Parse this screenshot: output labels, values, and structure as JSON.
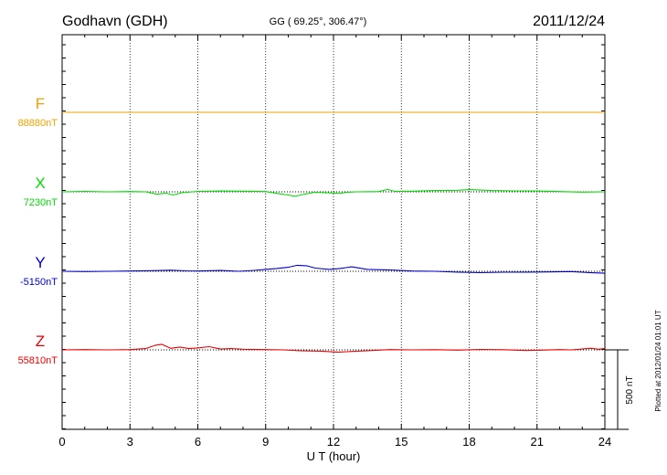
{
  "header": {
    "station": "Godhavn (GDH)",
    "coords": "GG ( 69.25°, 306.47°)",
    "date": "2011/12/24"
  },
  "plotted_note": "Plotted at 2012/01/24 01:01 UT",
  "scale_label": "500 nT",
  "colors": {
    "F": "#f0a000",
    "X": "#00dd00",
    "Y": "#0000cc",
    "Z": "#ee0000",
    "axis": "#000000",
    "grid": "#000000"
  },
  "chart_data": {
    "type": "line",
    "xlabel": "U T (hour)",
    "xlim": [
      0,
      24
    ],
    "xticks": [
      0,
      3,
      6,
      9,
      12,
      15,
      18,
      21,
      24
    ],
    "x_tick_labels": [
      "0",
      "3",
      "6",
      "9",
      "12",
      "15",
      "18",
      "21",
      "24"
    ],
    "y_unit": "nT",
    "scale_bar_nT": 500,
    "grid": true,
    "series": [
      {
        "name": "F",
        "baseline_label": "88880nT",
        "baseline_nT": 88880,
        "x": [
          0,
          24
        ],
        "y": [
          0,
          0
        ]
      },
      {
        "name": "X",
        "baseline_label": "7230nT",
        "baseline_nT": 7230,
        "x": [
          0,
          1,
          2,
          3,
          3.7,
          4.2,
          4.6,
          4.9,
          5.3,
          6,
          7,
          8,
          9,
          9.5,
          10,
          10.3,
          10.7,
          11.2,
          12.3,
          12.6,
          13,
          14,
          14.4,
          14.7,
          15.5,
          16.5,
          17.5,
          18,
          19,
          20,
          21,
          22,
          23,
          24
        ],
        "y": [
          0,
          3,
          0,
          2,
          0,
          -15,
          -8,
          -20,
          -6,
          3,
          5,
          4,
          2,
          -10,
          -20,
          -28,
          -15,
          -3,
          -10,
          -3,
          0,
          2,
          15,
          3,
          4,
          8,
          10,
          14,
          8,
          6,
          5,
          2,
          -2,
          0
        ]
      },
      {
        "name": "Y",
        "baseline_label": "-5150nT",
        "baseline_nT": -5150,
        "x": [
          0,
          1,
          2,
          3,
          4,
          4.8,
          5.5,
          6,
          7,
          7.8,
          8.5,
          9,
          9.5,
          10,
          10.4,
          10.8,
          11.2,
          11.8,
          12.3,
          12.8,
          13.5,
          14.5,
          15.5,
          16.5,
          17.5,
          18.5,
          19.5,
          20.5,
          21.5,
          22.5,
          23.3,
          24
        ],
        "y": [
          0,
          -2,
          0,
          2,
          4,
          7,
          3,
          2,
          5,
          0,
          6,
          12,
          18,
          25,
          38,
          35,
          20,
          12,
          18,
          28,
          12,
          8,
          2,
          0,
          -5,
          -8,
          -6,
          -5,
          -4,
          -2,
          -8,
          -12
        ]
      },
      {
        "name": "Z",
        "baseline_label": "55810nT",
        "baseline_nT": 55810,
        "x": [
          0,
          1,
          2,
          3,
          3.7,
          4.1,
          4.4,
          4.8,
          5.2,
          5.6,
          6,
          6.5,
          7,
          7.5,
          8,
          9,
          9.8,
          10.5,
          11.5,
          12.2,
          12.8,
          13.5,
          14.5,
          15.5,
          16.5,
          17.5,
          18.5,
          19.5,
          20.5,
          21.2,
          22,
          22.5,
          23.4,
          23.7,
          24
        ],
        "y": [
          0,
          2,
          0,
          2,
          8,
          28,
          35,
          10,
          18,
          8,
          12,
          20,
          5,
          8,
          4,
          2,
          0,
          -5,
          -8,
          -15,
          -10,
          -5,
          2,
          0,
          1,
          -2,
          3,
          1,
          -4,
          -2,
          2,
          0,
          10,
          4,
          8
        ]
      }
    ]
  }
}
